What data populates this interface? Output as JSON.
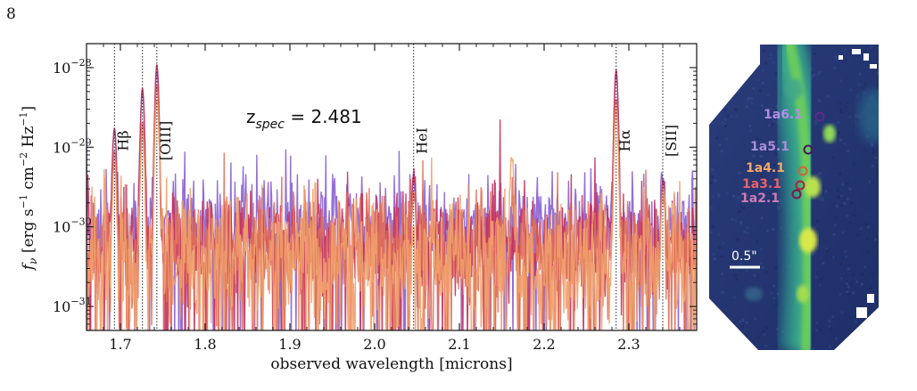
{
  "page": {
    "number": "8"
  },
  "chart_data": {
    "type": "line",
    "xlabel": "observed wavelength [microns]",
    "ylabel": "f_ν [erg s⁻¹ cm⁻² Hz⁻¹]",
    "ylabel_parts": {
      "f": "f",
      "nu": "ν",
      "unit_open": " [erg s",
      "e1": "−1",
      "cm": " cm",
      "e2": "−2",
      "hz": " Hz",
      "e3": "−1",
      "close": "]"
    },
    "xlim": [
      1.66,
      2.38
    ],
    "ylim": [
      5e-32,
      2e-28
    ],
    "yscale": "log",
    "x_ticks": [
      {
        "value": 1.7,
        "label": "1.7"
      },
      {
        "value": 1.8,
        "label": "1.8"
      },
      {
        "value": 1.9,
        "label": "1.9"
      },
      {
        "value": 2.0,
        "label": "2.0"
      },
      {
        "value": 2.1,
        "label": "2.1"
      },
      {
        "value": 2.2,
        "label": "2.2"
      },
      {
        "value": 2.3,
        "label": "2.3"
      }
    ],
    "y_ticks": [
      {
        "value": 1e-28,
        "base": "10",
        "exp": "−28"
      },
      {
        "value": 1e-29,
        "base": "10",
        "exp": "−29"
      },
      {
        "value": 1e-30,
        "base": "10",
        "exp": "−30"
      },
      {
        "value": 1e-31,
        "base": "10",
        "exp": "−31"
      }
    ],
    "annotation": {
      "text_main": "z",
      "text_sub": "spec",
      "text_value": " = 2.481"
    },
    "emission_lines": [
      {
        "wavelength": 1.693,
        "label": "Hβ"
      },
      {
        "wavelength": 1.726,
        "label": ""
      },
      {
        "wavelength": 1.743,
        "label": "[OIII]"
      },
      {
        "wavelength": 2.046,
        "label": "HeI"
      },
      {
        "wavelength": 2.285,
        "label": "Hα"
      },
      {
        "wavelength": 2.34,
        "label": "[SII]"
      }
    ],
    "series": [
      {
        "color": "#8a5fd1",
        "baseline": 1.1e-30,
        "scatter": 0.55,
        "peaks": [
          [
            1.693,
            1.6e-29
          ],
          [
            1.726,
            5e-29
          ],
          [
            1.743,
            9e-29
          ],
          [
            2.046,
            3.2e-30
          ],
          [
            2.285,
            8.5e-29
          ],
          [
            2.34,
            3e-30
          ]
        ]
      },
      {
        "color": "#c4315e",
        "baseline": 6e-31,
        "scatter": 0.55,
        "peaks": [
          [
            1.693,
            1.7e-29
          ],
          [
            1.726,
            5.5e-29
          ],
          [
            1.743,
            1.1e-28
          ],
          [
            2.046,
            3.4e-30
          ],
          [
            2.285,
            9.5e-29
          ],
          [
            2.34,
            3.3e-30
          ]
        ]
      },
      {
        "color": "#e0705a",
        "baseline": 5.5e-31,
        "scatter": 0.6,
        "peaks": [
          [
            1.693,
            8e-30
          ],
          [
            1.726,
            2e-29
          ],
          [
            1.743,
            6e-29
          ],
          [
            2.046,
            2.5e-30
          ],
          [
            2.285,
            4e-29
          ],
          [
            2.34,
            2.2e-30
          ]
        ]
      },
      {
        "color": "#f0a06a",
        "baseline": 3.5e-31,
        "scatter": 0.8,
        "peaks": [
          [
            1.693,
            6e-30
          ],
          [
            1.726,
            1.5e-29
          ],
          [
            1.743,
            4e-29
          ],
          [
            2.162,
            7e-30
          ],
          [
            2.285,
            3e-29
          ],
          [
            2.34,
            2e-30
          ]
        ]
      }
    ]
  },
  "image_panel": {
    "images": [
      {
        "name": "1a6.1",
        "color": "#b58be8",
        "circle_color": "#5a2a8a"
      },
      {
        "name": "1a5.1",
        "color": "#a98fd8",
        "circle_color": "#4a1a5a"
      },
      {
        "name": "1a4.1",
        "color": "#f4a66a",
        "circle_color": "#d0623a"
      },
      {
        "name": "1a3.1",
        "color": "#e8606a",
        "circle_color": "#b0203a"
      },
      {
        "name": "1a2.1",
        "color": "#d07cb4",
        "circle_color": "#7a1a4a"
      }
    ],
    "scale_bar_label": "0.5\""
  }
}
